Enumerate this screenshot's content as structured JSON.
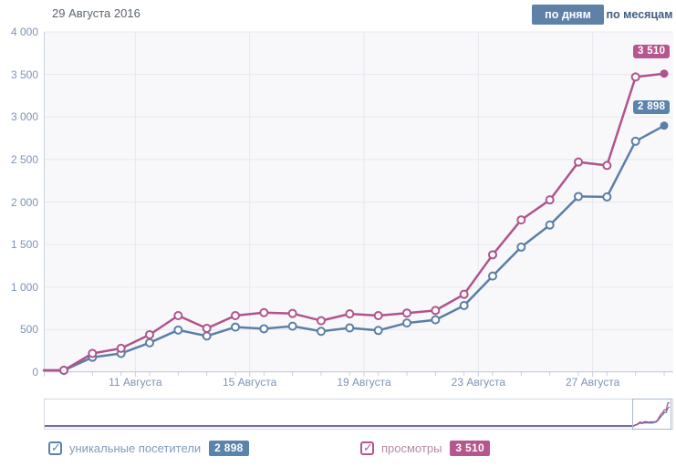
{
  "header": {
    "date": "29 Августа 2016",
    "view_toggle": {
      "by_days": "по дням",
      "by_months": "по месяцам",
      "active": "по дням"
    }
  },
  "colors": {
    "views_line": "#b0548c",
    "visitors_line": "#5b7fa6",
    "badge_pink": "#b5568f",
    "badge_blue": "#5b84ad",
    "button_active_bg": "#5e81a8",
    "button_active_text": "#ffffff",
    "button_inactive_text": "#3f5d80",
    "date_text": "#5b6471",
    "axis_text": "#7d93b4",
    "grid_line": "#e6e8f0",
    "axis_line": "#c8d1de",
    "plot_bg": "#f8f8fa",
    "legend_blue_text": "#7f9cba",
    "legend_pink_text": "#b58aa5",
    "minimap_border": "#d2d8e3",
    "minimap_viewport_border": "#aab8cc"
  },
  "chart_data": {
    "type": "line",
    "title": "",
    "x_unit": "day",
    "days": [
      8,
      9,
      10,
      11,
      12,
      13,
      14,
      15,
      16,
      17,
      18,
      19,
      20,
      21,
      22,
      23,
      24,
      25,
      26,
      27,
      28,
      29
    ],
    "month": "Августа",
    "ylim": [
      0,
      4000
    ],
    "ytick_labels": [
      "4 000",
      "3 500",
      "3 000",
      "2 500",
      "2 000",
      "1 500",
      "1 000",
      "500",
      "0"
    ],
    "xticks": [
      {
        "label": "11 Августа",
        "day": 11
      },
      {
        "label": "15 Августа",
        "day": 15
      },
      {
        "label": "19 Августа",
        "day": 19
      },
      {
        "label": "23 Августа",
        "day": 23
      },
      {
        "label": "27 Августа",
        "day": 27
      }
    ],
    "grid": true,
    "legend_position": "bottom",
    "series": [
      {
        "name": "просмотры",
        "color": "#b0548c",
        "current_value_label": "3 510",
        "values": [
          0,
          220,
          280,
          440,
          665,
          515,
          665,
          700,
          690,
          605,
          685,
          665,
          695,
          725,
          915,
          1380,
          1790,
          2025,
          2470,
          2430,
          3470,
          3510
        ]
      },
      {
        "name": "уникальные посетители",
        "color": "#5b7fa6",
        "current_value_label": "2 898",
        "values": [
          0,
          175,
          220,
          345,
          495,
          425,
          530,
          510,
          540,
          480,
          520,
          490,
          578,
          615,
          783,
          1130,
          1470,
          1730,
          2065,
          2060,
          2715,
          2898
        ]
      }
    ]
  },
  "legend": {
    "check_glyph": "✓",
    "items": [
      {
        "label": "уникальные посетители",
        "value": "2 898",
        "checked": true
      },
      {
        "label": "просмотры",
        "value": "3 510",
        "checked": true
      }
    ]
  }
}
